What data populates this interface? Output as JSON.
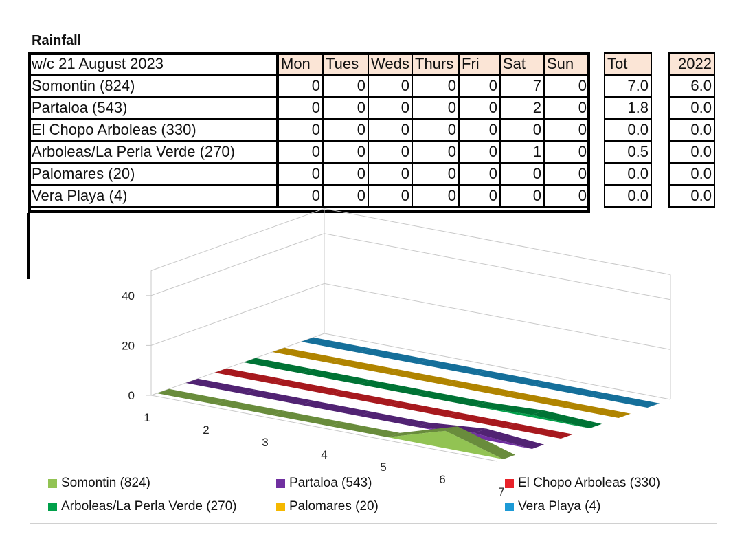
{
  "title": "Rainfall",
  "table": {
    "week_label": "w/c 21 August 2023",
    "days": [
      "Mon",
      "Tues",
      "Weds",
      "Thurs",
      "Fri",
      "Sat",
      "Sun"
    ],
    "total_header": "Tot",
    "prev_header": "2022",
    "rows": [
      {
        "name": "Somontin (824)",
        "values": [
          "0",
          "0",
          "0",
          "0",
          "0",
          "7",
          "0"
        ],
        "total": "7.0",
        "prev": "6.0"
      },
      {
        "name": "Partaloa (543)",
        "values": [
          "0",
          "0",
          "0",
          "0",
          "0",
          "2",
          "0"
        ],
        "total": "1.8",
        "prev": "0.0"
      },
      {
        "name": "El Chopo Arboleas (330)",
        "values": [
          "0",
          "0",
          "0",
          "0",
          "0",
          "0",
          "0"
        ],
        "total": "0.0",
        "prev": "0.0"
      },
      {
        "name": "Arboleas/La Perla Verde (270)",
        "values": [
          "0",
          "0",
          "0",
          "0",
          "0",
          "1",
          "0"
        ],
        "total": "0.5",
        "prev": "0.0"
      },
      {
        "name": "Palomares (20)",
        "values": [
          "0",
          "0",
          "0",
          "0",
          "0",
          "0",
          "0"
        ],
        "total": "0.0",
        "prev": "0.0"
      },
      {
        "name": "Vera Playa (4)",
        "values": [
          "0",
          "0",
          "0",
          "0",
          "0",
          "0",
          "0"
        ],
        "total": "0.0",
        "prev": "0.0"
      }
    ]
  },
  "chart_data": {
    "type": "area",
    "style": "3d",
    "categories": [
      "1",
      "2",
      "3",
      "4",
      "5",
      "6",
      "7"
    ],
    "ylim": [
      0,
      50
    ],
    "yticks": [
      "0",
      "20",
      "40"
    ],
    "series": [
      {
        "name": "Somontin (824)",
        "values": [
          0,
          0,
          0,
          0,
          0,
          7,
          0
        ],
        "color": "#92c353"
      },
      {
        "name": "Partaloa (543)",
        "values": [
          0,
          0,
          0,
          0,
          0,
          2,
          0
        ],
        "color": "#7030a0"
      },
      {
        "name": "El Chopo Arboleas (330)",
        "values": [
          0,
          0,
          0,
          0,
          0,
          0,
          0
        ],
        "color": "#e8232a"
      },
      {
        "name": "Arboleas/La Perla Verde (270)",
        "values": [
          0,
          0,
          0,
          0,
          0,
          1,
          0
        ],
        "color": "#00a04a"
      },
      {
        "name": "Palomares (20)",
        "values": [
          0,
          0,
          0,
          0,
          0,
          0,
          0
        ],
        "color": "#f5b800"
      },
      {
        "name": "Vera Playa (4)",
        "values": [
          0,
          0,
          0,
          0,
          0,
          0,
          0
        ],
        "color": "#1d9ad6"
      }
    ],
    "legend_position": "bottom"
  }
}
